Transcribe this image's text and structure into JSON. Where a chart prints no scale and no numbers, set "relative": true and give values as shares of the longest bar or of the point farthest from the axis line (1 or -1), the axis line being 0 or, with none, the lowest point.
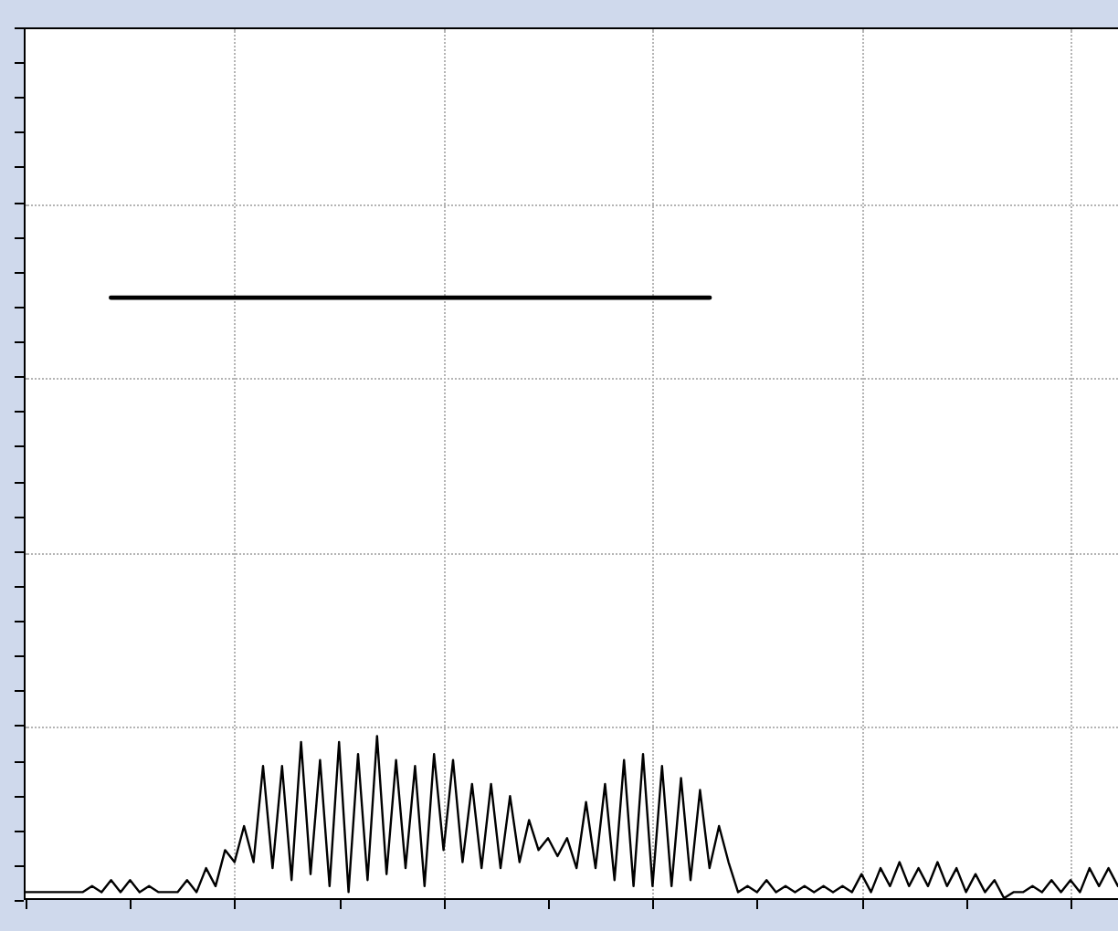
{
  "chart_data": {
    "type": "line",
    "relative": true,
    "grid": true,
    "legend": false,
    "marker": "none",
    "line_style": "solid",
    "categories": [
      null,
      null,
      null,
      null,
      null,
      null,
      null,
      null,
      null,
      null,
      null,
      null,
      null,
      null,
      null,
      null,
      null,
      null,
      null,
      null,
      null,
      null,
      null,
      null,
      null,
      null,
      null,
      null,
      null,
      null,
      null,
      null,
      null,
      null,
      null,
      null,
      null,
      null,
      null,
      null,
      null,
      null,
      null,
      null,
      null,
      null,
      null,
      null,
      null,
      null,
      null,
      null,
      null,
      null,
      null,
      null,
      null,
      null,
      null,
      null,
      null,
      null,
      null,
      null,
      null,
      null,
      null,
      null,
      null,
      null,
      null,
      null,
      null,
      null,
      null,
      null,
      null,
      null,
      null,
      null,
      null,
      null,
      null,
      null,
      null,
      null,
      null,
      null,
      null,
      null,
      null,
      null,
      null,
      null,
      null,
      null,
      null,
      null,
      null,
      null,
      null,
      null,
      null,
      null,
      null,
      null,
      null,
      null,
      null,
      null,
      null,
      null,
      null,
      null,
      null,
      null
    ],
    "series": [
      {
        "color": "#000000",
        "values": [
          0.01,
          0.01,
          0.01,
          0.01,
          0.01,
          0.01,
          0.01,
          0.02,
          0.01,
          0.03,
          0.01,
          0.03,
          0.01,
          0.02,
          0.01,
          0.01,
          0.01,
          0.03,
          0.01,
          0.05,
          0.02,
          0.08,
          0.06,
          0.12,
          0.06,
          0.22,
          0.05,
          0.22,
          0.03,
          0.26,
          0.04,
          0.23,
          0.02,
          0.26,
          0.01,
          0.24,
          0.03,
          0.27,
          0.04,
          0.23,
          0.05,
          0.22,
          0.02,
          0.24,
          0.08,
          0.23,
          0.06,
          0.19,
          0.05,
          0.19,
          0.05,
          0.17,
          0.06,
          0.13,
          0.08,
          0.1,
          0.07,
          0.1,
          0.05,
          0.16,
          0.05,
          0.19,
          0.03,
          0.23,
          0.02,
          0.24,
          0.02,
          0.22,
          0.02,
          0.2,
          0.03,
          0.18,
          0.05,
          0.12,
          0.06,
          0.01,
          0.02,
          0.01,
          0.03,
          0.01,
          0.02,
          0.01,
          0.02,
          0.01,
          0.02,
          0.01,
          0.02,
          0.01,
          0.04,
          0.01,
          0.05,
          0.02,
          0.06,
          0.02,
          0.05,
          0.02,
          0.06,
          0.02,
          0.05,
          0.01,
          0.04,
          0.01,
          0.03,
          0.0,
          0.01,
          0.01,
          0.02,
          0.01,
          0.03,
          0.01,
          0.03,
          0.01,
          0.05,
          0.02,
          0.05,
          0.02
        ]
      },
      {
        "color": "#000000",
        "values": [
          null,
          null,
          null,
          null,
          null,
          null,
          null,
          null,
          null,
          1,
          1,
          1,
          1,
          1,
          1,
          1,
          1,
          1,
          1,
          1,
          1,
          1,
          1,
          1,
          1,
          1,
          1,
          1,
          1,
          1,
          1,
          1,
          1,
          1,
          1,
          1,
          1,
          1,
          1,
          1,
          1,
          1,
          1,
          1,
          1,
          1,
          1,
          1,
          1,
          1,
          1,
          1,
          1,
          1,
          1,
          1,
          1,
          1,
          1,
          1,
          1,
          1,
          1,
          1,
          1,
          1,
          1,
          1,
          1,
          1,
          1,
          1,
          1,
          null,
          null,
          null,
          null,
          null,
          null,
          null,
          null,
          null,
          null,
          null,
          null,
          null,
          null,
          null,
          null,
          null,
          null,
          null,
          null,
          null,
          null,
          null,
          null,
          null,
          null,
          null,
          null,
          null,
          null,
          null,
          null,
          null,
          null,
          null,
          null,
          null,
          null,
          null,
          null,
          null,
          null,
          null
        ]
      }
    ]
  }
}
